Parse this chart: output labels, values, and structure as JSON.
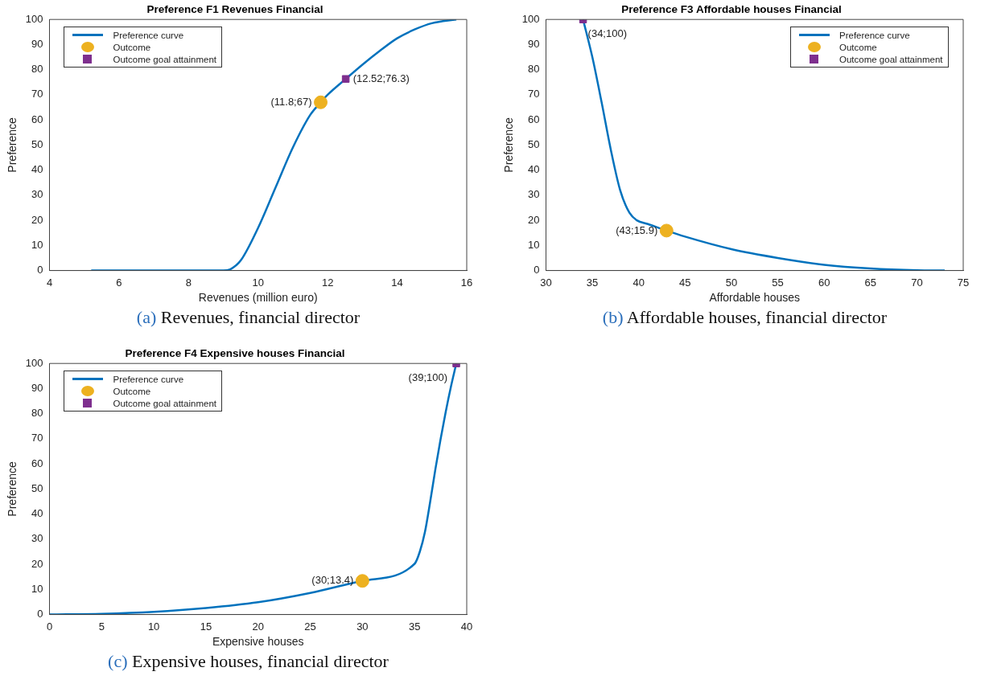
{
  "chart_data": [
    {
      "type": "line",
      "title": "Preference F1 Revenues Financial",
      "xlabel": "Revenues (million euro)",
      "ylabel": "Preference",
      "xlim": [
        4,
        16
      ],
      "xticks": [
        4,
        6,
        8,
        10,
        12,
        14,
        16
      ],
      "ylim": [
        0,
        100
      ],
      "yticks": [
        0,
        10,
        20,
        30,
        40,
        50,
        60,
        70,
        80,
        90,
        100
      ],
      "grid": false,
      "legend": "top left",
      "series": [
        {
          "name": "Preference curve",
          "type": "line",
          "color": "#0072bd",
          "marker": "none",
          "x": [
            5.2,
            9,
            9.2,
            9.5,
            10,
            10.5,
            11,
            11.5,
            11.8,
            12,
            12.52,
            13,
            13.5,
            14,
            14.5,
            15,
            15.7
          ],
          "values": [
            0,
            0,
            0.5,
            4,
            17,
            33,
            49,
            62,
            67,
            70,
            76.3,
            82,
            87.5,
            92.5,
            96,
            98.5,
            100
          ]
        },
        {
          "name": "Outcome",
          "type": "scatter",
          "color": "#edb120",
          "marker": "circle",
          "x": [
            11.8
          ],
          "values": [
            67
          ]
        },
        {
          "name": "Outcome goal attainment",
          "type": "scatter",
          "color": "#7e2f8e",
          "marker": "square",
          "x": [
            12.52
          ],
          "values": [
            76.3
          ]
        }
      ],
      "annotations": [
        {
          "text": "(11.8;67)",
          "x": 11.8,
          "y": 67
        },
        {
          "text": "(12.52;76.3)",
          "x": 12.52,
          "y": 76.3
        },
        "(a) Revenues, financial director"
      ]
    },
    {
      "type": "line",
      "title": "Preference F3 Affordable houses Financial",
      "xlabel": "Affordable houses",
      "ylabel": "Preference",
      "xlim": [
        30,
        75
      ],
      "xticks": [
        30,
        35,
        40,
        45,
        50,
        55,
        60,
        65,
        70,
        75
      ],
      "ylim": [
        0,
        100
      ],
      "yticks": [
        0,
        10,
        20,
        30,
        40,
        50,
        60,
        70,
        80,
        90,
        100
      ],
      "grid": false,
      "legend": "top right",
      "series": [
        {
          "name": "Preference curve",
          "type": "line",
          "color": "#0072bd",
          "marker": "none",
          "x": [
            34,
            35,
            36,
            37,
            38,
            39,
            39.8,
            41,
            43,
            45,
            50,
            55,
            60,
            65,
            70,
            73
          ],
          "values": [
            100,
            85,
            67,
            48,
            32,
            23,
            20,
            18.5,
            15.9,
            13.5,
            8.5,
            5,
            2.3,
            0.8,
            0.1,
            0
          ]
        },
        {
          "name": "Outcome",
          "type": "scatter",
          "color": "#edb120",
          "marker": "circle",
          "x": [
            43
          ],
          "values": [
            15.9
          ]
        },
        {
          "name": "Outcome goal attainment",
          "type": "scatter",
          "color": "#7e2f8e",
          "marker": "square",
          "x": [
            34
          ],
          "values": [
            100
          ]
        }
      ],
      "annotations": [
        {
          "text": "(43;15.9)",
          "x": 43,
          "y": 15.9
        },
        {
          "text": "(34;100)",
          "x": 34,
          "y": 100
        },
        "(b) Affordable houses, financial director"
      ]
    },
    {
      "type": "line",
      "title": "Preference F4 Expensive houses Financial",
      "xlabel": "Expensive houses",
      "ylabel": "Preference",
      "xlim": [
        0,
        40
      ],
      "xticks": [
        0,
        5,
        10,
        15,
        20,
        25,
        30,
        35,
        40
      ],
      "ylim": [
        0,
        100
      ],
      "yticks": [
        0,
        10,
        20,
        30,
        40,
        50,
        60,
        70,
        80,
        90,
        100
      ],
      "grid": false,
      "legend": "top left",
      "series": [
        {
          "name": "Preference curve",
          "type": "line",
          "color": "#0072bd",
          "marker": "none",
          "x": [
            0,
            5,
            10,
            15,
            20,
            25,
            30,
            35,
            35.5,
            36,
            36.5,
            37,
            37.5,
            38,
            38.5,
            39
          ],
          "values": [
            0,
            0.3,
            1.1,
            2.6,
            4.9,
            8.6,
            13.4,
            20.2,
            25,
            33,
            45,
            58,
            70,
            81,
            91,
            100
          ]
        },
        {
          "name": "Outcome",
          "type": "scatter",
          "color": "#edb120",
          "marker": "circle",
          "x": [
            30
          ],
          "values": [
            13.4
          ]
        },
        {
          "name": "Outcome goal attainment",
          "type": "scatter",
          "color": "#7e2f8e",
          "marker": "square",
          "x": [
            39
          ],
          "values": [
            100
          ]
        }
      ],
      "annotations": [
        {
          "text": "(30;13.4)",
          "x": 30,
          "y": 13.4
        },
        {
          "text": "(39;100)",
          "x": 39,
          "y": 100
        },
        "(c) Expensive houses, financial director"
      ]
    }
  ]
}
